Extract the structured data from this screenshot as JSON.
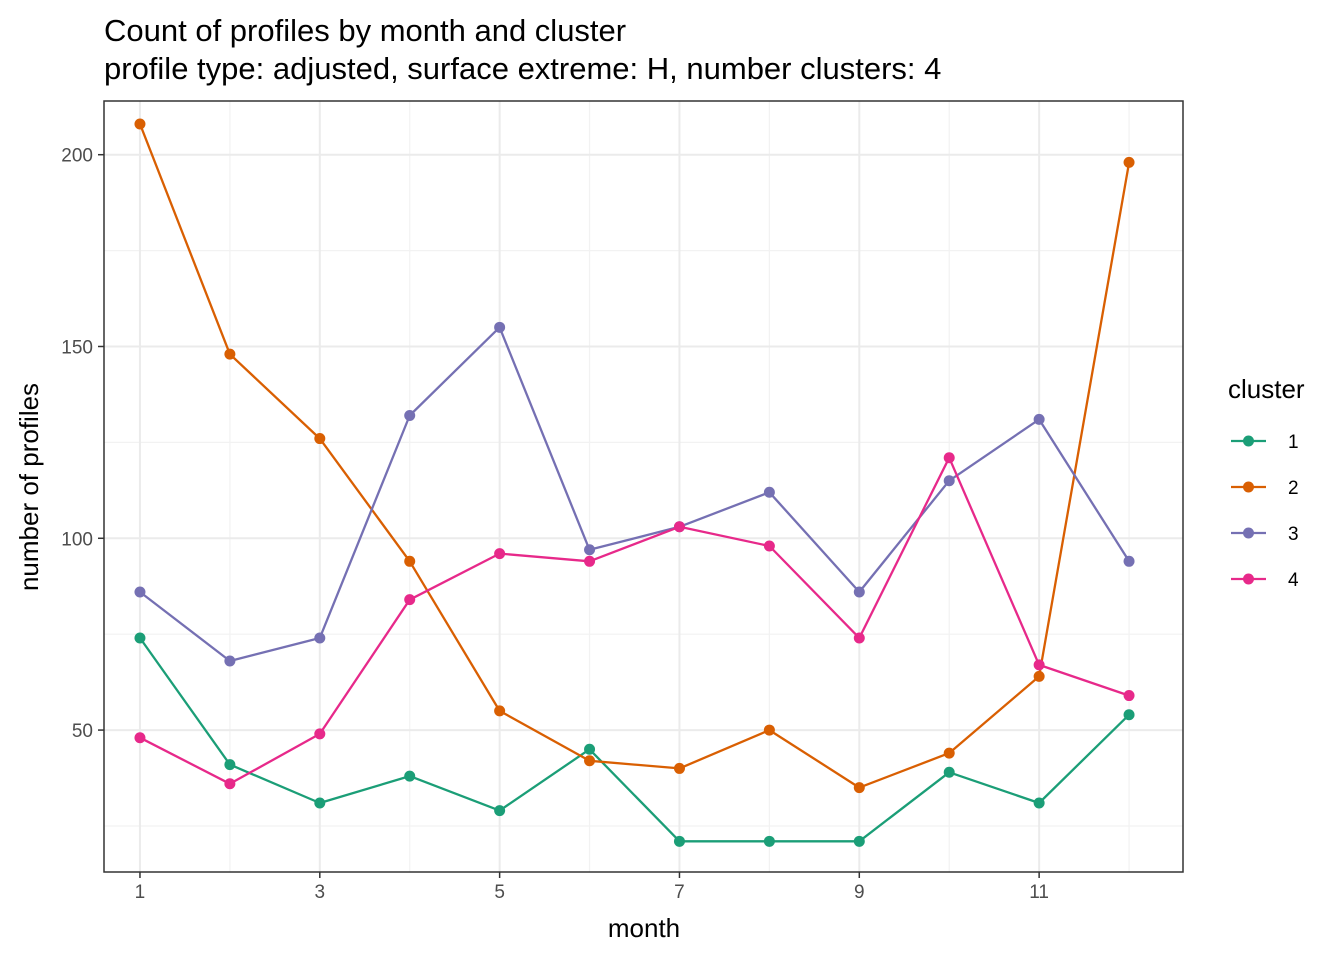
{
  "chart_data": {
    "type": "line",
    "title": "Count of profiles by month and cluster",
    "subtitle": "profile type: adjusted, surface extreme: H, number clusters: 4",
    "xlabel": "month",
    "ylabel": "number of profiles",
    "x": [
      1,
      2,
      3,
      4,
      5,
      6,
      7,
      8,
      9,
      10,
      11,
      12
    ],
    "xlim": [
      0.6,
      12.6
    ],
    "ylim": [
      13,
      214
    ],
    "x_ticks": [
      1,
      3,
      5,
      7,
      9,
      11
    ],
    "y_ticks": [
      50,
      100,
      150,
      200
    ],
    "grid": true,
    "legend_title": "cluster",
    "legend_position": "right",
    "series": [
      {
        "name": "1",
        "color": "#1B9E77",
        "values": [
          74,
          41,
          31,
          38,
          29,
          45,
          21,
          21,
          21,
          39,
          31,
          54
        ]
      },
      {
        "name": "2",
        "color": "#D95F02",
        "values": [
          208,
          148,
          126,
          94,
          55,
          42,
          40,
          50,
          35,
          44,
          64,
          198
        ]
      },
      {
        "name": "3",
        "color": "#7570B3",
        "values": [
          86,
          68,
          74,
          132,
          155,
          97,
          103,
          112,
          86,
          115,
          131,
          94
        ]
      },
      {
        "name": "4",
        "color": "#E7298A",
        "values": [
          48,
          36,
          49,
          84,
          96,
          94,
          103,
          98,
          74,
          121,
          67,
          59
        ]
      }
    ]
  }
}
